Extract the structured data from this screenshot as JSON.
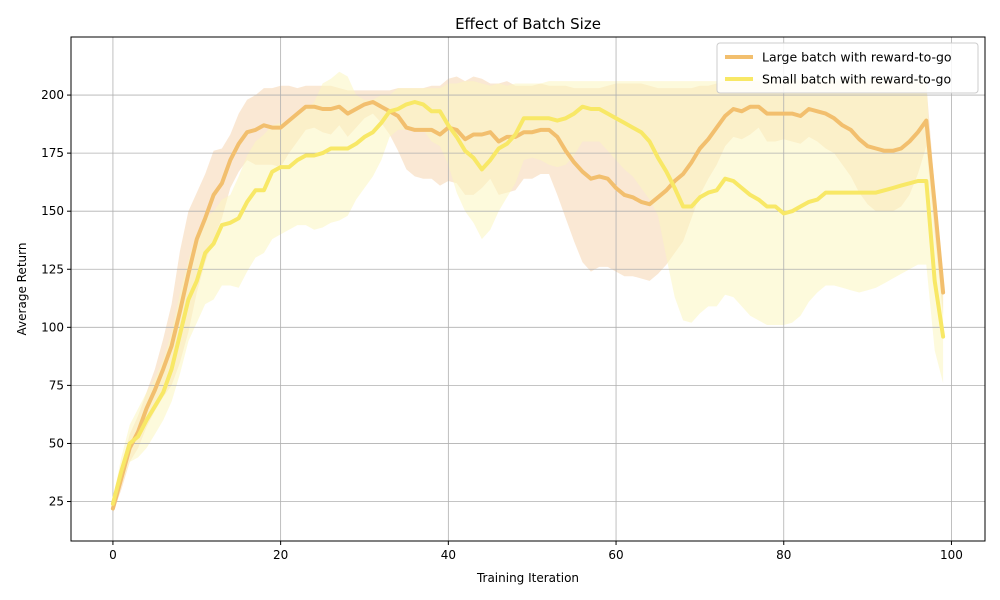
{
  "chart_data": {
    "type": "line",
    "title": "Effect of Batch Size",
    "xlabel": "Training Iteration",
    "ylabel": "Average Return",
    "xlim": [
      -5,
      104
    ],
    "ylim": [
      8,
      225
    ],
    "xticks": [
      0,
      20,
      40,
      60,
      80,
      100
    ],
    "yticks": [
      25,
      50,
      75,
      100,
      125,
      150,
      175,
      200
    ],
    "grid": true,
    "legend_position": "top-right",
    "x": [
      0,
      1,
      2,
      3,
      4,
      5,
      6,
      7,
      8,
      9,
      10,
      11,
      12,
      13,
      14,
      15,
      16,
      17,
      18,
      19,
      20,
      21,
      22,
      23,
      24,
      25,
      26,
      27,
      28,
      29,
      30,
      31,
      32,
      33,
      34,
      35,
      36,
      37,
      38,
      39,
      40,
      41,
      42,
      43,
      44,
      45,
      46,
      47,
      48,
      49,
      50,
      51,
      52,
      53,
      54,
      55,
      56,
      57,
      58,
      59,
      60,
      61,
      62,
      63,
      64,
      65,
      66,
      67,
      68,
      69,
      70,
      71,
      72,
      73,
      74,
      75,
      76,
      77,
      78,
      79,
      80,
      81,
      82,
      83,
      84,
      85,
      86,
      87,
      88,
      89,
      90,
      91,
      92,
      93,
      94,
      95,
      96,
      97,
      98,
      99
    ],
    "series": [
      {
        "name": "Large batch with reward-to-go",
        "color": "#f2bf6e",
        "band_color": "#f6d5b0",
        "values": [
          22,
          35,
          48,
          55,
          65,
          73,
          82,
          92,
          107,
          123,
          138,
          147,
          157,
          162,
          172,
          179,
          184,
          185,
          187,
          186,
          186,
          189,
          192,
          195,
          195,
          194,
          194,
          195,
          192,
          194,
          196,
          197,
          195,
          193,
          191,
          186,
          185,
          185,
          185,
          183,
          186,
          185,
          181,
          183,
          183,
          184,
          180,
          182,
          182,
          184,
          184,
          185,
          185,
          182,
          176,
          171,
          167,
          164,
          165,
          164,
          160,
          157,
          156,
          154,
          153,
          156,
          159,
          163,
          166,
          171,
          177,
          181,
          186,
          191,
          194,
          193,
          195,
          195,
          192,
          192,
          192,
          192,
          191,
          194,
          193,
          192,
          190,
          187,
          185,
          181,
          178,
          177,
          176,
          176,
          177,
          180,
          184,
          189,
          153,
          115
        ],
        "upper": [
          24,
          40,
          54,
          62,
          72,
          82,
          95,
          110,
          133,
          150,
          158,
          166,
          176,
          177,
          183,
          192,
          198,
          200,
          203,
          203,
          204,
          204,
          203,
          204,
          204,
          204,
          204,
          203,
          202,
          202,
          202,
          202,
          202,
          202,
          203,
          203,
          203,
          203,
          204,
          204,
          207,
          208,
          206,
          208,
          207,
          205,
          205,
          206,
          204,
          204,
          204,
          205,
          204,
          204,
          204,
          203,
          203,
          203,
          203,
          204,
          205,
          205,
          205,
          205,
          204,
          203,
          203,
          203,
          203,
          203,
          204,
          204,
          205,
          206,
          207,
          207,
          206,
          206,
          206,
          206,
          206,
          206,
          206,
          206,
          206,
          206,
          206,
          206,
          206,
          206,
          206,
          206,
          206,
          206,
          206,
          206,
          206,
          205,
          160,
          120
        ],
        "lower": [
          20,
          30,
          42,
          48,
          57,
          64,
          70,
          75,
          85,
          98,
          115,
          128,
          138,
          147,
          160,
          167,
          172,
          170,
          170,
          170,
          169,
          175,
          180,
          185,
          186,
          184,
          183,
          187,
          182,
          186,
          190,
          192,
          188,
          183,
          176,
          168,
          165,
          164,
          164,
          161,
          163,
          162,
          157,
          157,
          160,
          164,
          157,
          158,
          159,
          164,
          164,
          166,
          166,
          157,
          147,
          137,
          128,
          124,
          126,
          126,
          124,
          122,
          122,
          121,
          120,
          123,
          127,
          132,
          137,
          147,
          157,
          164,
          170,
          178,
          182,
          181,
          183,
          186,
          180,
          180,
          181,
          180,
          179,
          182,
          180,
          177,
          175,
          170,
          165,
          158,
          153,
          150,
          150,
          150,
          152,
          157,
          166,
          178,
          140,
          105
        ]
      },
      {
        "name": "Small batch with reward-to-go",
        "color": "#f8e866",
        "band_color": "#fcf5c0",
        "values": [
          24,
          38,
          50,
          53,
          60,
          66,
          72,
          82,
          97,
          112,
          120,
          132,
          136,
          144,
          145,
          147,
          154,
          159,
          159,
          167,
          169,
          169,
          172,
          174,
          174,
          175,
          177,
          177,
          177,
          179,
          182,
          184,
          188,
          193,
          194,
          196,
          197,
          196,
          193,
          193,
          187,
          182,
          176,
          173,
          168,
          172,
          177,
          179,
          183,
          190,
          190,
          190,
          190,
          189,
          190,
          192,
          195,
          194,
          194,
          192,
          190,
          188,
          186,
          184,
          180,
          173,
          167,
          160,
          152,
          152,
          156,
          158,
          159,
          164,
          163,
          160,
          157,
          155,
          152,
          152,
          149,
          150,
          152,
          154,
          155,
          158,
          158,
          158,
          158,
          158,
          158,
          158,
          159,
          160,
          161,
          162,
          163,
          163,
          120,
          96
        ],
        "upper": [
          26,
          44,
          58,
          65,
          72,
          78,
          86,
          98,
          115,
          129,
          141,
          147,
          150,
          155,
          157,
          165,
          174,
          180,
          183,
          187,
          188,
          189,
          192,
          194,
          197,
          205,
          207,
          210,
          208,
          200,
          198,
          198,
          200,
          200,
          203,
          203,
          203,
          203,
          203,
          203,
          205,
          205,
          206,
          206,
          205,
          204,
          205,
          204,
          205,
          205,
          205,
          205,
          206,
          206,
          206,
          206,
          206,
          206,
          206,
          206,
          206,
          206,
          206,
          206,
          206,
          206,
          206,
          206,
          206,
          206,
          206,
          206,
          206,
          207,
          207,
          207,
          207,
          207,
          207,
          207,
          207,
          207,
          207,
          207,
          207,
          207,
          207,
          207,
          207,
          207,
          207,
          207,
          207,
          207,
          207,
          207,
          207,
          207,
          140,
          120
        ],
        "lower": [
          22,
          32,
          42,
          44,
          48,
          54,
          60,
          68,
          80,
          94,
          102,
          110,
          112,
          118,
          118,
          117,
          124,
          130,
          132,
          138,
          140,
          142,
          144,
          144,
          142,
          143,
          145,
          146,
          148,
          155,
          160,
          165,
          172,
          182,
          185,
          185,
          185,
          185,
          180,
          178,
          170,
          158,
          150,
          145,
          138,
          142,
          150,
          156,
          162,
          172,
          173,
          172,
          170,
          169,
          170,
          174,
          180,
          180,
          180,
          176,
          172,
          168,
          165,
          160,
          155,
          148,
          130,
          113,
          103,
          102,
          106,
          109,
          109,
          114,
          113,
          109,
          105,
          103,
          101,
          101,
          101,
          102,
          105,
          111,
          115,
          118,
          118,
          117,
          116,
          115,
          116,
          117,
          119,
          121,
          123,
          125,
          127,
          127,
          90,
          76
        ]
      }
    ]
  }
}
